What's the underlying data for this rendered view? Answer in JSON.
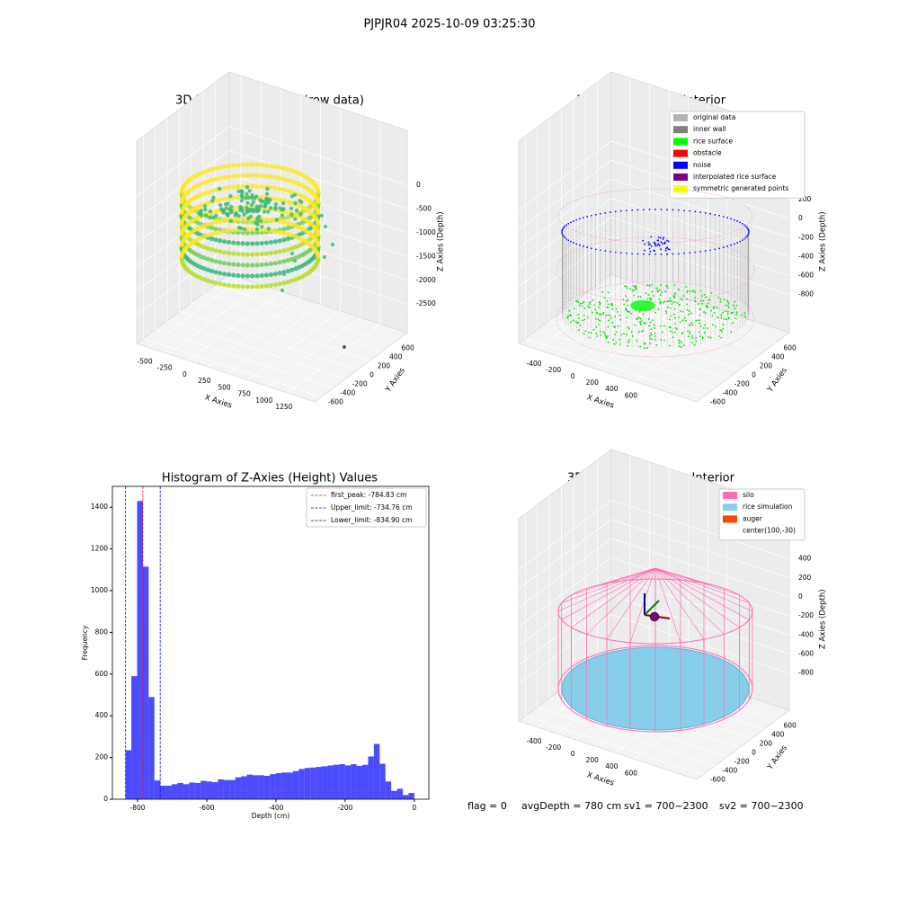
{
  "title": "PJPJR04 2025-10-09 03:25:30",
  "footer": [
    "flag = 0",
    "avgDepth = 780 cm",
    "sv1 = 700~2300",
    "sv2 = 700~2300"
  ],
  "chart_data": [
    {
      "type": "scatter3d",
      "title": "3D Plot of Silo Interior(row data)",
      "xlabel": "X Axies",
      "ylabel": "Y Axies",
      "zlabel": "Z Axies (Depth)",
      "xlim": [
        -648,
        1590
      ],
      "ylim": [
        -710,
        830
      ],
      "zlim": [
        -3100,
        1150
      ],
      "xticks": [
        -500,
        -250,
        0,
        250,
        500,
        750,
        1000,
        1250
      ],
      "yticks": [
        -600,
        -400,
        -200,
        0,
        200,
        400,
        600
      ],
      "zticks": [
        -2500,
        -2000,
        -1500,
        -1000,
        -500,
        0
      ],
      "grid": true
    },
    {
      "type": "cloud3d",
      "title": "3D classify of Silo Interior",
      "xlabel": "X Axies",
      "ylabel": "Y Axies",
      "zlabel": "Z Axies (Depth)",
      "xlim": [
        -595,
        1240
      ],
      "ylim": [
        -710,
        830
      ],
      "zlim": [
        -1200,
        930
      ],
      "xticks": [
        -400,
        -200,
        0,
        200,
        400,
        600
      ],
      "yticks": [
        -600,
        -400,
        -200,
        0,
        200,
        400,
        600
      ],
      "zticks": [
        -800,
        -600,
        -400,
        -200,
        0,
        200
      ],
      "grid": true,
      "series": [
        {
          "name": "original data",
          "color": "#b3b3b3"
        },
        {
          "name": "inner wall",
          "color": "#808080"
        },
        {
          "name": "rice surface",
          "color": "#00ff00"
        },
        {
          "name": "obstacle",
          "color": "#ff0000"
        },
        {
          "name": "noise",
          "color": "#0000ff"
        },
        {
          "name": "interpolated rice surface",
          "color": "#800080"
        },
        {
          "name": "symmetric generated points",
          "color": "#ffff00"
        }
      ]
    },
    {
      "type": "histogram",
      "title": "Histogram of Z-Axies (Height) Values",
      "xlabel": "Depth (cm)",
      "ylabel": "Frequency",
      "color": "#0000ff",
      "alpha": 0.7,
      "bins": [
        -834.9,
        -818.2,
        -801.5,
        -784.81,
        -768.11,
        -751.41,
        -734.71,
        -718.01,
        -701.32,
        -684.62,
        -667.92,
        -651.22,
        -634.52,
        -617.83,
        -601.13,
        -584.43,
        -567.73,
        -551.03,
        -534.34,
        -517.64,
        -500.94,
        -484.24,
        -467.54,
        -450.85,
        -434.15,
        -417.45,
        -400.75,
        -384.05,
        -367.36,
        -350.66,
        -333.96,
        -317.26,
        -300.56,
        -283.87,
        -267.17,
        -250.47,
        -233.77,
        -217.07,
        -200.38,
        -183.68,
        -166.98,
        -150.28,
        -133.58,
        -116.89,
        -100.19,
        -83.49,
        -66.79,
        -50.09,
        -33.4,
        -16.7,
        0
      ],
      "counts": [
        235,
        590,
        1430,
        1115,
        490,
        90,
        65,
        65,
        72,
        78,
        72,
        80,
        78,
        88,
        85,
        82,
        95,
        92,
        92,
        105,
        110,
        118,
        115,
        115,
        112,
        120,
        125,
        128,
        128,
        135,
        145,
        150,
        152,
        155,
        158,
        162,
        165,
        168,
        162,
        168,
        160,
        165,
        205,
        265,
        170,
        85,
        40,
        50,
        20,
        30
      ],
      "xlim": [
        -873,
        42
      ],
      "ylim": [
        0,
        1500
      ],
      "xticks": [
        -800,
        -600,
        -400,
        -200,
        0
      ],
      "yticks": [
        0,
        200,
        400,
        600,
        800,
        1000,
        1200,
        1400
      ],
      "lines": [
        {
          "name": "first_peak: -784.83 cm",
          "value": -784.83,
          "color": "#ff0000"
        },
        {
          "name": "Upper_limit: -734.76 cm",
          "value": -734.76,
          "color": "#0000ff"
        },
        {
          "name": "Lower_limit: -834.90 cm",
          "value": -834.9,
          "color": "#0000ff"
        }
      ],
      "legend": "upper right"
    },
    {
      "type": "wireframe3d",
      "title": "3D simulation of Silo Interior",
      "xlabel": "X Axies",
      "ylabel": "Y Axies",
      "zlabel": "Z Axies (Depth)",
      "xlim": [
        -595,
        1240
      ],
      "ylim": [
        -710,
        830
      ],
      "zlim": [
        -1190,
        935
      ],
      "xticks": [
        -400,
        -200,
        0,
        200,
        400,
        600
      ],
      "yticks": [
        -600,
        -400,
        -200,
        0,
        200,
        400,
        600
      ],
      "zticks": [
        -800,
        -600,
        -400,
        -200,
        0,
        200,
        400
      ],
      "grid": true,
      "series": [
        {
          "name": "silo",
          "color": "#ff69b4"
        },
        {
          "name": "rice simulation",
          "color": "#87ceeb"
        },
        {
          "name": "auger",
          "color": "#ff4500"
        },
        {
          "name": "center(100,-30)",
          "color": "#ffffff"
        }
      ]
    }
  ]
}
